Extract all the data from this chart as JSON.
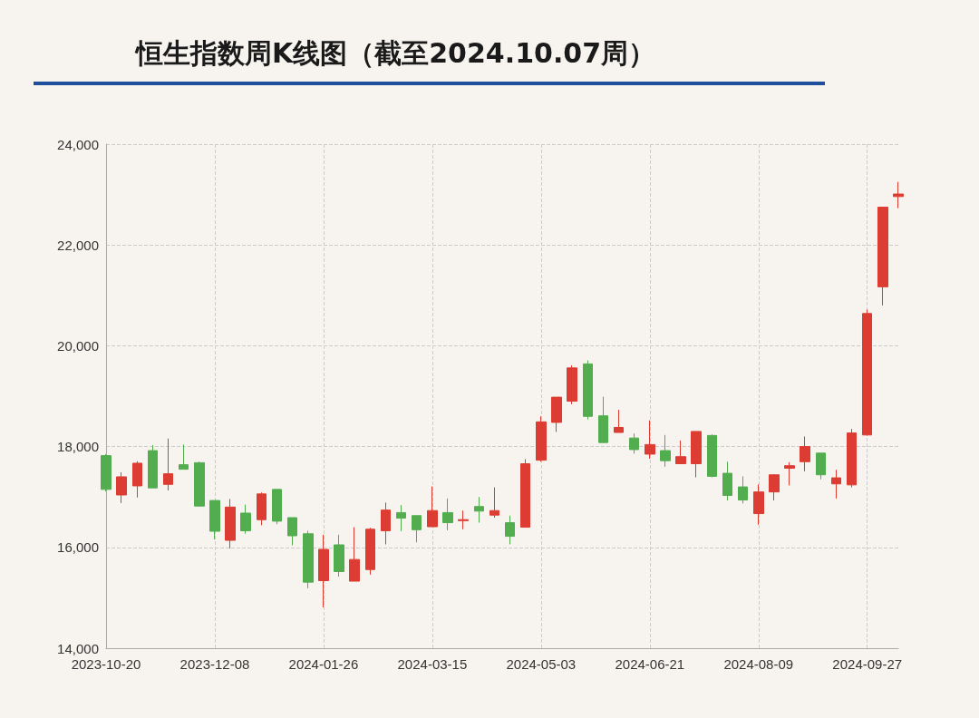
{
  "chart_data": {
    "type": "candlestick",
    "title": "恒生指数周K线图（截至2024.10.07周）",
    "categories": [
      "2023-10-20",
      null,
      null,
      null,
      null,
      null,
      null,
      "2023-12-08",
      null,
      null,
      null,
      null,
      null,
      null,
      "2024-01-26",
      null,
      null,
      null,
      null,
      null,
      null,
      "2024-03-15",
      null,
      null,
      null,
      null,
      null,
      null,
      "2024-05-03",
      null,
      null,
      null,
      null,
      null,
      null,
      "2024-06-21",
      null,
      null,
      null,
      null,
      null,
      null,
      "2024-08-09",
      null,
      null,
      null,
      null,
      null,
      null,
      "2024-09-27",
      null,
      null
    ],
    "ohlc": [
      [
        17820,
        17850,
        17110,
        17150
      ],
      [
        17040,
        17490,
        16880,
        17400
      ],
      [
        17220,
        17710,
        16990,
        17670
      ],
      [
        17920,
        18030,
        17180,
        17180
      ],
      [
        17250,
        18160,
        17130,
        17460
      ],
      [
        17640,
        18040,
        17550,
        17550
      ],
      [
        17680,
        17700,
        16810,
        16820
      ],
      [
        16930,
        16930,
        16160,
        16320
      ],
      [
        16140,
        16960,
        15980,
        16800
      ],
      [
        16680,
        16850,
        16270,
        16330
      ],
      [
        16550,
        17090,
        16440,
        17060
      ],
      [
        17150,
        17150,
        16460,
        16520
      ],
      [
        16590,
        16590,
        16040,
        16230
      ],
      [
        16270,
        16330,
        15190,
        15310
      ],
      [
        15340,
        16250,
        14810,
        15960
      ],
      [
        16050,
        16250,
        15420,
        15520
      ],
      [
        15330,
        16400,
        15330,
        15760
      ],
      [
        15560,
        16390,
        15460,
        16360
      ],
      [
        16330,
        16890,
        16060,
        16740
      ],
      [
        16690,
        16840,
        16320,
        16580
      ],
      [
        16630,
        16630,
        16100,
        16350
      ],
      [
        16410,
        17210,
        16410,
        16730
      ],
      [
        16690,
        16970,
        16340,
        16490
      ],
      [
        16530,
        16730,
        16360,
        16550
      ],
      [
        16810,
        17000,
        16490,
        16720
      ],
      [
        16640,
        17190,
        16590,
        16730
      ],
      [
        16490,
        16630,
        16060,
        16220
      ],
      [
        16400,
        17750,
        16400,
        17660
      ],
      [
        17730,
        18600,
        17700,
        18490
      ],
      [
        18480,
        18980,
        18290,
        18980
      ],
      [
        18900,
        19610,
        18840,
        19560
      ],
      [
        19640,
        19710,
        18540,
        18600
      ],
      [
        18610,
        18990,
        18080,
        18080
      ],
      [
        18280,
        18730,
        18280,
        18380
      ],
      [
        18170,
        18260,
        17860,
        17940
      ],
      [
        17850,
        18520,
        17760,
        18040
      ],
      [
        17920,
        18230,
        17600,
        17720
      ],
      [
        17660,
        18120,
        17660,
        17800
      ],
      [
        17660,
        18300,
        17390,
        18300
      ],
      [
        18220,
        18240,
        17390,
        17410
      ],
      [
        17470,
        17700,
        16930,
        17030
      ],
      [
        17200,
        17410,
        16870,
        16940
      ],
      [
        16670,
        17250,
        16450,
        17100
      ],
      [
        17100,
        17450,
        16930,
        17440
      ],
      [
        17570,
        17690,
        17230,
        17620
      ],
      [
        17700,
        18200,
        17510,
        18000
      ],
      [
        17870,
        17870,
        17350,
        17440
      ],
      [
        17260,
        17540,
        16970,
        17380
      ],
      [
        17240,
        18350,
        17190,
        18270
      ],
      [
        18230,
        20720,
        18220,
        20640
      ],
      [
        21170,
        22750,
        20800,
        22750
      ],
      [
        22960,
        23250,
        22730,
        23010
      ]
    ],
    "colors": [
      "#52ad4f",
      "#dc3c32",
      "#dc3c32",
      "#52ad4f",
      "#dc3c32",
      "#52ad4f",
      "#52ad4f",
      "#52ad4f",
      "#dc3c32",
      "#52ad4f",
      "#dc3c32",
      "#52ad4f",
      "#52ad4f",
      "#52ad4f",
      "#dc3c32",
      "#52ad4f",
      "#dc3c32",
      "#dc3c32",
      "#dc3c32",
      "#52ad4f",
      "#52ad4f",
      "#dc3c32",
      "#52ad4f",
      "#dc3c32",
      "#52ad4f",
      "#dc3c32",
      "#52ad4f",
      "#dc3c32",
      "#dc3c32",
      "#dc3c32",
      "#dc3c32",
      "#52ad4f",
      "#52ad4f",
      "#dc3c32",
      "#52ad4f",
      "#dc3c32",
      "#52ad4f",
      "#dc3c32",
      "#dc3c32",
      "#52ad4f",
      "#52ad4f",
      "#52ad4f",
      "#dc3c32",
      "#dc3c32",
      "#dc3c32",
      "#dc3c32",
      "#52ad4f",
      "#dc3c32",
      "#dc3c32",
      "#dc3c32",
      "#dc3c32",
      "#dc3c32"
    ],
    "ylim": [
      14000,
      24000
    ],
    "yticks": [
      {
        "value": 14000,
        "label": "14,000"
      },
      {
        "value": 16000,
        "label": "16,000"
      },
      {
        "value": 18000,
        "label": "18,000"
      },
      {
        "value": 20000,
        "label": "20,000"
      },
      {
        "value": 22000,
        "label": "22,000"
      },
      {
        "value": 24000,
        "label": "24,000"
      }
    ],
    "grid": true
  }
}
